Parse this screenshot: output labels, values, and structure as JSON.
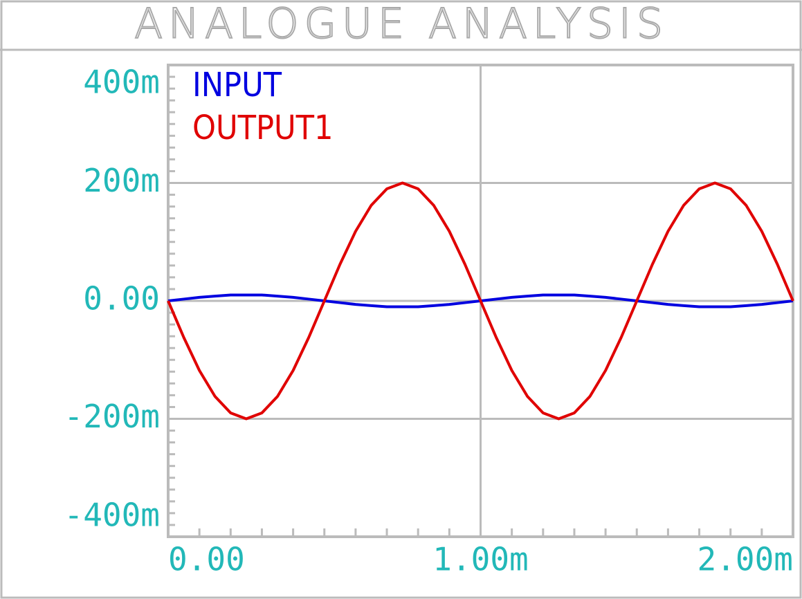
{
  "chart_data": {
    "type": "line",
    "title": "ANALOGUE ANALYSIS",
    "x": [
      0,
      5e-05,
      0.0001,
      0.00015,
      0.0002,
      0.00025,
      0.0003,
      0.00035,
      0.0004,
      0.00045,
      0.0005,
      0.00055,
      0.0006,
      0.00065,
      0.0007,
      0.00075,
      0.0008,
      0.00085,
      0.0009,
      0.00095,
      0.001,
      0.00105,
      0.0011,
      0.00115,
      0.0012,
      0.00125,
      0.0013,
      0.00135,
      0.0014,
      0.00145,
      0.0015,
      0.00155,
      0.0016,
      0.00165,
      0.0017,
      0.00175,
      0.0018,
      0.00185,
      0.0019,
      0.00195,
      0.002
    ],
    "series": [
      {
        "name": "INPUT",
        "color": "#0000e0",
        "values": [
          0,
          0.003,
          0.006,
          0.008,
          0.01,
          0.01,
          0.01,
          0.008,
          0.006,
          0.003,
          0,
          -0.003,
          -0.006,
          -0.008,
          -0.01,
          -0.01,
          -0.01,
          -0.008,
          -0.006,
          -0.003,
          0,
          0.003,
          0.006,
          0.008,
          0.01,
          0.01,
          0.01,
          0.008,
          0.006,
          0.003,
          0,
          -0.003,
          -0.006,
          -0.008,
          -0.01,
          -0.01,
          -0.01,
          -0.008,
          -0.006,
          -0.003,
          0
        ]
      },
      {
        "name": "OUTPUT1",
        "color": "#e00000",
        "values": [
          0,
          -0.062,
          -0.118,
          -0.162,
          -0.19,
          -0.2,
          -0.19,
          -0.162,
          -0.118,
          -0.062,
          0,
          0.062,
          0.118,
          0.162,
          0.19,
          0.2,
          0.19,
          0.162,
          0.118,
          0.062,
          0,
          -0.062,
          -0.118,
          -0.162,
          -0.19,
          -0.2,
          -0.19,
          -0.162,
          -0.118,
          -0.062,
          0,
          0.062,
          0.118,
          0.162,
          0.19,
          0.2,
          0.19,
          0.162,
          0.118,
          0.062,
          0
        ]
      }
    ],
    "xlim": [
      0,
      0.002
    ],
    "xticks": [
      {
        "value": 0,
        "label": "0.00"
      },
      {
        "value": 0.001,
        "label": "1.00m"
      },
      {
        "value": 0.002,
        "label": "2.00m"
      }
    ],
    "x_minor_ticks": [
      0.0001,
      0.0002,
      0.0003,
      0.0004,
      0.0005,
      0.0006,
      0.0007,
      0.0008,
      0.0009,
      0.0011,
      0.0012,
      0.0013,
      0.0014,
      0.0015,
      0.0016,
      0.0017,
      0.0018,
      0.0019
    ],
    "ylim": [
      -0.4,
      0.4
    ],
    "yticks": [
      {
        "value": 0.4,
        "label": "400m"
      },
      {
        "value": 0.2,
        "label": "200m"
      },
      {
        "value": 0,
        "label": "0.00"
      },
      {
        "value": -0.2,
        "label": "-200m"
      },
      {
        "value": -0.4,
        "label": "-400m"
      }
    ],
    "y_minor_ticks": [
      -0.38,
      -0.36,
      -0.34,
      -0.32,
      -0.3,
      -0.28,
      -0.26,
      -0.24,
      -0.22,
      -0.18,
      -0.16,
      -0.14,
      -0.12,
      -0.1,
      -0.08,
      -0.06,
      -0.04,
      -0.02,
      0.02,
      0.04,
      0.06,
      0.08,
      0.1,
      0.12,
      0.14,
      0.16,
      0.18,
      0.22,
      0.24,
      0.26,
      0.28,
      0.3,
      0.32,
      0.34,
      0.36,
      0.38
    ],
    "grid": true,
    "legend": "top-left"
  }
}
